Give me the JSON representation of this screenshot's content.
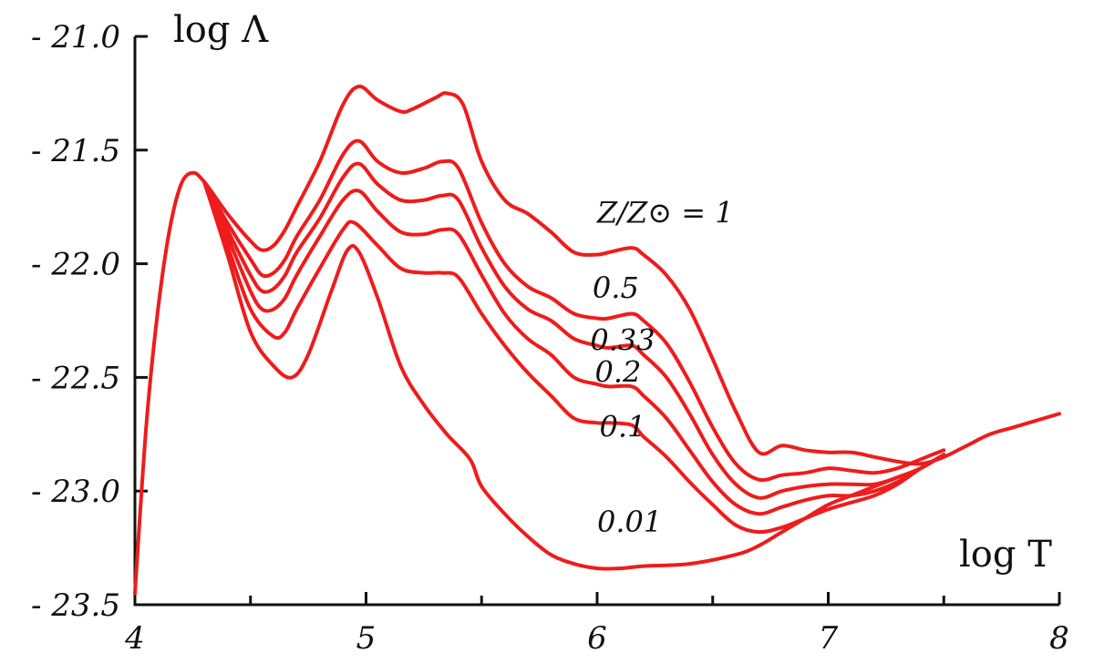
{
  "chart_data": {
    "type": "line",
    "xlabel": "log T",
    "ylabel": "log Λ",
    "xlim": [
      4,
      8
    ],
    "ylim": [
      -23.5,
      -21.0
    ],
    "xticks": [
      4,
      5,
      6,
      7,
      8
    ],
    "xminor": [
      4.5,
      5.5,
      6.5,
      7.5
    ],
    "yticks": [
      -21.0,
      -21.5,
      -22.0,
      -22.5,
      -23.0,
      -23.5
    ],
    "xtick_labels": [
      "4",
      "5",
      "6",
      "7",
      "8"
    ],
    "ytick_labels": [
      "- 21.0",
      "- 21.5",
      "- 22.0",
      "- 22.5",
      "- 23.0",
      "- 23.5"
    ],
    "line_color": "#ee1c1c",
    "series": [
      {
        "label": "Z/Z⊙ = 1",
        "points": [
          [
            4.0,
            -23.45
          ],
          [
            4.05,
            -22.7
          ],
          [
            4.1,
            -22.2
          ],
          [
            4.15,
            -21.85
          ],
          [
            4.2,
            -21.65
          ],
          [
            4.25,
            -21.6
          ],
          [
            4.3,
            -21.64
          ],
          [
            4.4,
            -21.78
          ],
          [
            4.5,
            -21.9
          ],
          [
            4.55,
            -21.94
          ],
          [
            4.6,
            -21.92
          ],
          [
            4.65,
            -21.85
          ],
          [
            4.7,
            -21.75
          ],
          [
            4.8,
            -21.55
          ],
          [
            4.9,
            -21.3
          ],
          [
            4.97,
            -21.22
          ],
          [
            5.05,
            -21.28
          ],
          [
            5.15,
            -21.33
          ],
          [
            5.2,
            -21.32
          ],
          [
            5.3,
            -21.27
          ],
          [
            5.35,
            -21.25
          ],
          [
            5.42,
            -21.3
          ],
          [
            5.5,
            -21.55
          ],
          [
            5.6,
            -21.72
          ],
          [
            5.7,
            -21.78
          ],
          [
            5.8,
            -21.86
          ],
          [
            5.9,
            -21.95
          ],
          [
            6.0,
            -21.96
          ],
          [
            6.05,
            -21.95
          ],
          [
            6.15,
            -21.93
          ],
          [
            6.2,
            -21.96
          ],
          [
            6.3,
            -22.05
          ],
          [
            6.4,
            -22.2
          ],
          [
            6.5,
            -22.42
          ],
          [
            6.6,
            -22.65
          ],
          [
            6.7,
            -22.83
          ],
          [
            6.8,
            -22.8
          ],
          [
            6.9,
            -22.82
          ],
          [
            7.0,
            -22.83
          ],
          [
            7.1,
            -22.83
          ],
          [
            7.2,
            -22.85
          ],
          [
            7.3,
            -22.87
          ],
          [
            7.4,
            -22.88
          ],
          [
            7.5,
            -22.85
          ],
          [
            7.6,
            -22.8
          ],
          [
            7.7,
            -22.75
          ],
          [
            7.8,
            -22.72
          ],
          [
            7.9,
            -22.69
          ],
          [
            8.0,
            -22.66
          ]
        ]
      },
      {
        "label": "0.5",
        "points": [
          [
            4.3,
            -21.64
          ],
          [
            4.4,
            -21.82
          ],
          [
            4.5,
            -21.98
          ],
          [
            4.55,
            -22.05
          ],
          [
            4.6,
            -22.04
          ],
          [
            4.65,
            -21.98
          ],
          [
            4.7,
            -21.88
          ],
          [
            4.8,
            -21.72
          ],
          [
            4.9,
            -21.52
          ],
          [
            4.97,
            -21.46
          ],
          [
            5.05,
            -21.55
          ],
          [
            5.15,
            -21.6
          ],
          [
            5.25,
            -21.58
          ],
          [
            5.33,
            -21.55
          ],
          [
            5.4,
            -21.58
          ],
          [
            5.5,
            -21.82
          ],
          [
            5.6,
            -22.0
          ],
          [
            5.7,
            -22.1
          ],
          [
            5.8,
            -22.15
          ],
          [
            5.9,
            -22.22
          ],
          [
            6.0,
            -22.24
          ],
          [
            6.05,
            -22.24
          ],
          [
            6.15,
            -22.22
          ],
          [
            6.2,
            -22.25
          ],
          [
            6.3,
            -22.35
          ],
          [
            6.4,
            -22.52
          ],
          [
            6.5,
            -22.72
          ],
          [
            6.6,
            -22.88
          ],
          [
            6.7,
            -22.95
          ],
          [
            6.8,
            -22.93
          ],
          [
            6.9,
            -22.92
          ],
          [
            7.0,
            -22.9
          ],
          [
            7.1,
            -22.91
          ],
          [
            7.2,
            -22.92
          ],
          [
            7.3,
            -22.9
          ],
          [
            7.4,
            -22.86
          ],
          [
            7.5,
            -22.82
          ]
        ]
      },
      {
        "label": "0.33",
        "points": [
          [
            4.3,
            -21.64
          ],
          [
            4.4,
            -21.85
          ],
          [
            4.5,
            -22.05
          ],
          [
            4.55,
            -22.12
          ],
          [
            4.6,
            -22.11
          ],
          [
            4.65,
            -22.05
          ],
          [
            4.7,
            -21.95
          ],
          [
            4.8,
            -21.8
          ],
          [
            4.9,
            -21.62
          ],
          [
            4.97,
            -21.56
          ],
          [
            5.05,
            -21.65
          ],
          [
            5.15,
            -21.72
          ],
          [
            5.25,
            -21.72
          ],
          [
            5.33,
            -21.7
          ],
          [
            5.4,
            -21.72
          ],
          [
            5.5,
            -21.93
          ],
          [
            5.6,
            -22.1
          ],
          [
            5.7,
            -22.2
          ],
          [
            5.8,
            -22.25
          ],
          [
            5.9,
            -22.33
          ],
          [
            6.0,
            -22.36
          ],
          [
            6.05,
            -22.37
          ],
          [
            6.15,
            -22.36
          ],
          [
            6.2,
            -22.4
          ],
          [
            6.3,
            -22.5
          ],
          [
            6.4,
            -22.66
          ],
          [
            6.5,
            -22.84
          ],
          [
            6.6,
            -22.97
          ],
          [
            6.7,
            -23.03
          ],
          [
            6.8,
            -23.0
          ],
          [
            6.9,
            -22.98
          ],
          [
            7.0,
            -22.97
          ],
          [
            7.1,
            -22.97
          ],
          [
            7.2,
            -22.97
          ],
          [
            7.3,
            -22.94
          ],
          [
            7.4,
            -22.9
          ],
          [
            7.5,
            -22.84
          ]
        ]
      },
      {
        "label": "0.2",
        "points": [
          [
            4.3,
            -21.64
          ],
          [
            4.4,
            -21.88
          ],
          [
            4.5,
            -22.12
          ],
          [
            4.55,
            -22.2
          ],
          [
            4.6,
            -22.2
          ],
          [
            4.65,
            -22.15
          ],
          [
            4.7,
            -22.05
          ],
          [
            4.8,
            -21.88
          ],
          [
            4.9,
            -21.72
          ],
          [
            4.97,
            -21.68
          ],
          [
            5.05,
            -21.77
          ],
          [
            5.15,
            -21.86
          ],
          [
            5.25,
            -21.87
          ],
          [
            5.33,
            -21.85
          ],
          [
            5.4,
            -21.87
          ],
          [
            5.5,
            -22.05
          ],
          [
            5.6,
            -22.22
          ],
          [
            5.7,
            -22.33
          ],
          [
            5.8,
            -22.4
          ],
          [
            5.9,
            -22.5
          ],
          [
            6.0,
            -22.53
          ],
          [
            6.05,
            -22.54
          ],
          [
            6.15,
            -22.54
          ],
          [
            6.2,
            -22.58
          ],
          [
            6.3,
            -22.68
          ],
          [
            6.4,
            -22.82
          ],
          [
            6.5,
            -22.96
          ],
          [
            6.6,
            -23.06
          ],
          [
            6.7,
            -23.1
          ],
          [
            6.8,
            -23.07
          ],
          [
            6.9,
            -23.04
          ],
          [
            7.0,
            -23.02
          ],
          [
            7.1,
            -23.02
          ],
          [
            7.2,
            -23.0
          ],
          [
            7.3,
            -22.96
          ],
          [
            7.4,
            -22.9
          ],
          [
            7.5,
            -22.84
          ]
        ]
      },
      {
        "label": "0.1",
        "points": [
          [
            4.3,
            -21.64
          ],
          [
            4.4,
            -21.92
          ],
          [
            4.5,
            -22.2
          ],
          [
            4.6,
            -22.32
          ],
          [
            4.65,
            -22.3
          ],
          [
            4.7,
            -22.2
          ],
          [
            4.8,
            -22.02
          ],
          [
            4.9,
            -21.85
          ],
          [
            4.95,
            -21.82
          ],
          [
            5.05,
            -21.92
          ],
          [
            5.15,
            -22.02
          ],
          [
            5.25,
            -22.04
          ],
          [
            5.33,
            -22.04
          ],
          [
            5.4,
            -22.06
          ],
          [
            5.5,
            -22.22
          ],
          [
            5.6,
            -22.36
          ],
          [
            5.7,
            -22.48
          ],
          [
            5.8,
            -22.58
          ],
          [
            5.9,
            -22.68
          ],
          [
            6.0,
            -22.7
          ],
          [
            6.05,
            -22.7
          ],
          [
            6.15,
            -22.71
          ],
          [
            6.2,
            -22.76
          ],
          [
            6.3,
            -22.85
          ],
          [
            6.4,
            -22.96
          ],
          [
            6.5,
            -23.06
          ],
          [
            6.6,
            -23.15
          ],
          [
            6.7,
            -23.18
          ],
          [
            6.8,
            -23.16
          ],
          [
            6.9,
            -23.12
          ],
          [
            7.0,
            -23.08
          ],
          [
            7.1,
            -23.05
          ],
          [
            7.2,
            -23.02
          ],
          [
            7.3,
            -22.97
          ],
          [
            7.4,
            -22.9
          ],
          [
            7.5,
            -22.84
          ]
        ]
      },
      {
        "label": "0.01",
        "points": [
          [
            4.3,
            -21.64
          ],
          [
            4.4,
            -21.96
          ],
          [
            4.5,
            -22.3
          ],
          [
            4.6,
            -22.45
          ],
          [
            4.68,
            -22.5
          ],
          [
            4.75,
            -22.4
          ],
          [
            4.85,
            -22.12
          ],
          [
            4.92,
            -21.94
          ],
          [
            4.97,
            -21.95
          ],
          [
            5.05,
            -22.15
          ],
          [
            5.15,
            -22.45
          ],
          [
            5.25,
            -22.62
          ],
          [
            5.35,
            -22.75
          ],
          [
            5.45,
            -22.86
          ],
          [
            5.5,
            -22.98
          ],
          [
            5.6,
            -23.1
          ],
          [
            5.7,
            -23.2
          ],
          [
            5.8,
            -23.28
          ],
          [
            5.9,
            -23.32
          ],
          [
            6.0,
            -23.34
          ],
          [
            6.1,
            -23.34
          ],
          [
            6.2,
            -23.33
          ],
          [
            6.4,
            -23.32
          ],
          [
            6.6,
            -23.28
          ],
          [
            6.7,
            -23.24
          ],
          [
            6.8,
            -23.18
          ],
          [
            6.9,
            -23.12
          ],
          [
            7.0,
            -23.06
          ],
          [
            7.1,
            -23.02
          ],
          [
            7.2,
            -22.98
          ],
          [
            7.3,
            -22.94
          ],
          [
            7.4,
            -22.9
          ],
          [
            7.5,
            -22.84
          ]
        ]
      }
    ],
    "curve_labels": [
      {
        "text": "Z/Z⊙ = 1",
        "x": 6.0,
        "y": -21.82
      },
      {
        "text": "0.5",
        "x": 5.98,
        "y": -22.15
      },
      {
        "text": "0.33",
        "x": 5.97,
        "y": -22.38
      },
      {
        "text": "0.2",
        "x": 5.99,
        "y": -22.52
      },
      {
        "text": "0.1",
        "x": 6.01,
        "y": -22.76
      },
      {
        "text": "0.01",
        "x": 6.0,
        "y": -23.18
      }
    ]
  }
}
